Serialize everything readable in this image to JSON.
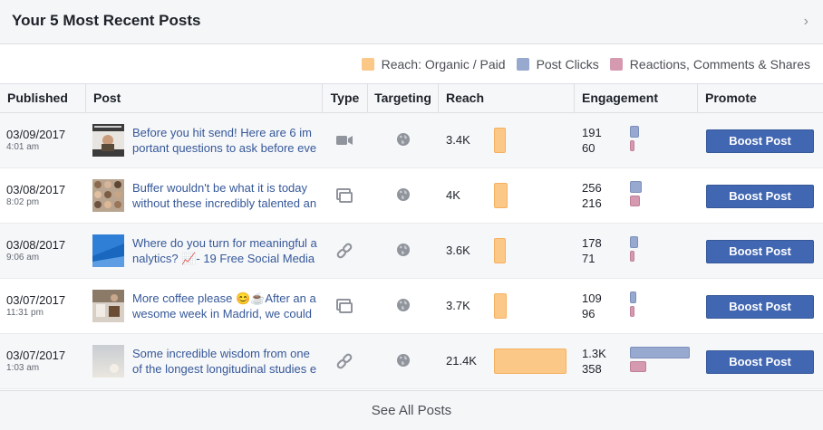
{
  "header": {
    "title": "Your 5 Most Recent Posts",
    "chevron": "›"
  },
  "legend": [
    {
      "label": "Reach: Organic / Paid",
      "color": "#fcc888"
    },
    {
      "label": "Post Clicks",
      "color": "#98a9cf"
    },
    {
      "label": "Reactions, Comments & Shares",
      "color": "#d59ab0"
    }
  ],
  "columns": [
    "Published",
    "Post",
    "Type",
    "Targeting",
    "Reach",
    "Engagement",
    "Promote"
  ],
  "rows": [
    {
      "date": "03/09/2017",
      "time": "4:01 am",
      "post": "Before you hit send! Here are 6 important questions to ask before every",
      "type": "video-icon",
      "reach": "3.4K",
      "reach_num": 3400,
      "clicks": "191",
      "clicks_num": 191,
      "reactions": "60",
      "reactions_num": 60,
      "boost": "Boost Post"
    },
    {
      "date": "03/08/2017",
      "time": "8:02 pm",
      "post": "Buffer wouldn't be what it is today without these incredibly talented and",
      "type": "album-icon",
      "reach": "4K",
      "reach_num": 4000,
      "clicks": "256",
      "clicks_num": 256,
      "reactions": "216",
      "reactions_num": 216,
      "boost": "Boost Post"
    },
    {
      "date": "03/08/2017",
      "time": "9:06 am",
      "post": "Where do you turn for meaningful analytics? 📈- 19 Free Social Media",
      "type": "link-icon",
      "reach": "3.6K",
      "reach_num": 3600,
      "clicks": "178",
      "clicks_num": 178,
      "reactions": "71",
      "reactions_num": 71,
      "boost": "Boost Post"
    },
    {
      "date": "03/07/2017",
      "time": "11:31 pm",
      "post": "More coffee please 😊☕After an awesome week in Madrid, we could",
      "type": "album-icon",
      "reach": "3.7K",
      "reach_num": 3700,
      "clicks": "109",
      "clicks_num": 109,
      "reactions": "96",
      "reactions_num": 96,
      "boost": "Boost Post"
    },
    {
      "date": "03/07/2017",
      "time": "1:03 am",
      "post": "Some incredible wisdom from one of the longest longitudinal studies e",
      "type": "link-icon",
      "reach": "21.4K",
      "reach_num": 21400,
      "clicks": "1.3K",
      "clicks_num": 1300,
      "reactions": "358",
      "reactions_num": 358,
      "boost": "Boost Post"
    }
  ],
  "footer": {
    "link": "See All Posts"
  }
}
